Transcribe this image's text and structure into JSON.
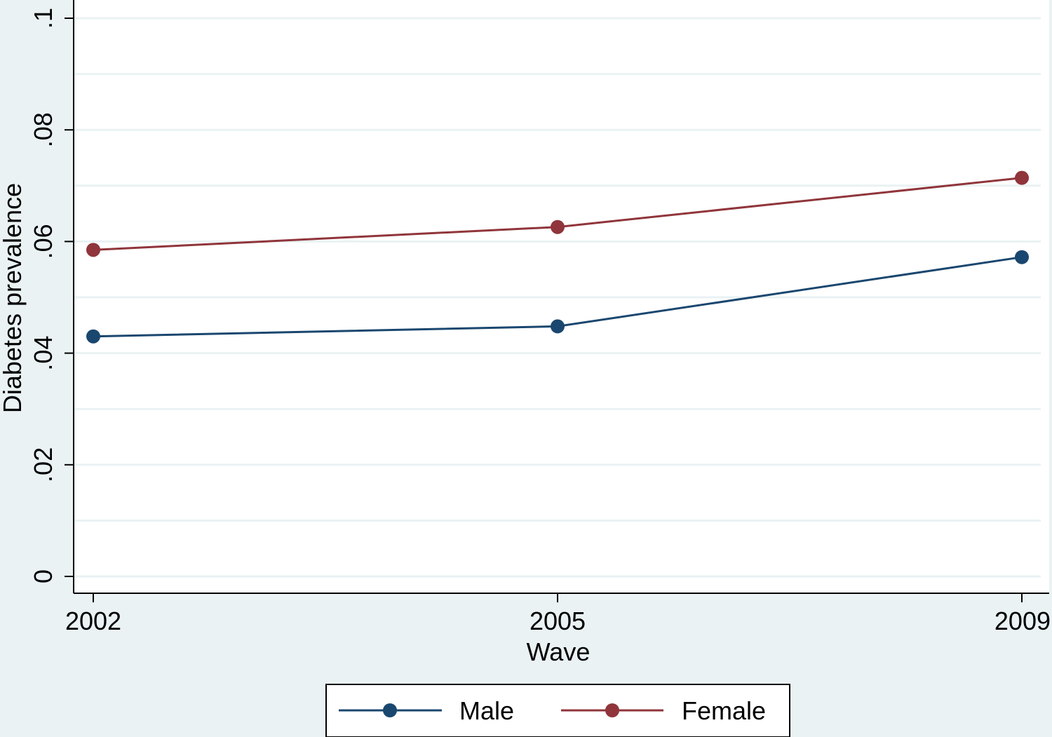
{
  "chart_data": {
    "type": "line",
    "title": "",
    "xlabel": "Wave",
    "ylabel": "Diabetes prevalence",
    "x": [
      2002,
      2005,
      2009
    ],
    "x_tick_labels": [
      "2002",
      "2005",
      "2009"
    ],
    "ylim": [
      0,
      0.1
    ],
    "y_ticks": [
      0,
      0.02,
      0.04,
      0.06,
      0.08,
      0.1
    ],
    "y_tick_labels": [
      "0",
      ".02",
      ".04",
      ".06",
      ".08",
      ".1"
    ],
    "grid": true,
    "legend_position": "bottom",
    "series": [
      {
        "name": "Male",
        "values": [
          0.043,
          0.0448,
          0.0572
        ],
        "color": "#1a476f"
      },
      {
        "name": "Female",
        "values": [
          0.0585,
          0.0626,
          0.0714
        ],
        "color": "#90353b"
      }
    ]
  },
  "colors": {
    "background": "#eaf2f3",
    "plot_background": "#ffffff",
    "gridline": "#eaf2f3"
  }
}
